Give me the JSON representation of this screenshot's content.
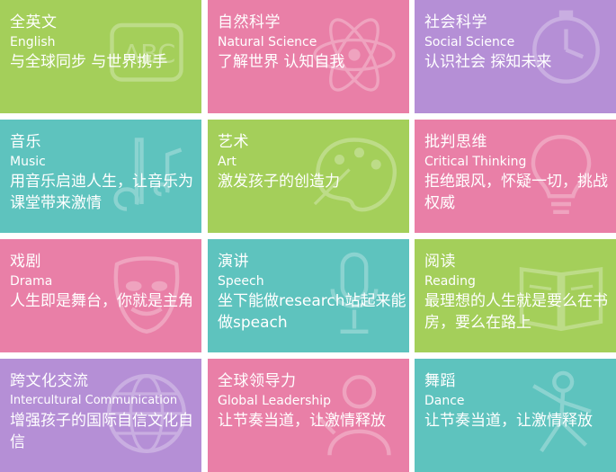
{
  "tiles": [
    {
      "key": "english",
      "cn": "全英文",
      "en": "English",
      "desc": "与全球同步 与世界携手",
      "color": "#a4cf5a",
      "icon": "abc-icon"
    },
    {
      "key": "natural-science",
      "cn": "自然科学",
      "en": "Natural Science",
      "desc": "了解世界  认知自我",
      "color": "#e97fa7",
      "icon": "atom-icon"
    },
    {
      "key": "social-science",
      "cn": "社会科学",
      "en": "Social Science",
      "desc": "认识社会 探知未来",
      "color": "#b58fd6",
      "icon": "clock-icon"
    },
    {
      "key": "music",
      "cn": "音乐",
      "en": "Music",
      "desc": "用音乐启迪人生，让音乐为课堂带来激情",
      "color": "#5ec3be",
      "icon": "music-note-icon"
    },
    {
      "key": "art",
      "cn": "艺术",
      "en": "Art",
      "desc": "激发孩子的创造力",
      "color": "#a4cf5a",
      "icon": "palette-icon"
    },
    {
      "key": "critical-thinking",
      "cn": "批判思维",
      "en": "Critical Thinking",
      "desc": "拒绝跟风，怀疑一切，挑战权威",
      "color": "#e97fa7",
      "icon": "lightbulb-icon"
    },
    {
      "key": "drama",
      "cn": "戏剧",
      "en": "Drama",
      "desc": "人生即是舞台，你就是主角",
      "color": "#e97fa7",
      "icon": "mask-icon"
    },
    {
      "key": "speech",
      "cn": "演讲",
      "en": "Speech",
      "desc": "坐下能做research站起来能做speach",
      "color": "#5ec3be",
      "icon": "microphone-icon"
    },
    {
      "key": "reading",
      "cn": "阅读",
      "en": "Reading",
      "desc": "最理想的人生就是要么在书房，要么在路上",
      "color": "#a4cf5a",
      "icon": "book-icon"
    },
    {
      "key": "intercultural",
      "cn": "跨文化交流",
      "en": "Intercultural Communication",
      "desc": "增强孩子的国际自信文化自信",
      "color": "#b58fd6",
      "icon": "globe-icon"
    },
    {
      "key": "leadership",
      "cn": "全球领导力",
      "en": "Global Leadership",
      "desc": "让节奏当道，让激情释放",
      "color": "#e97fa7",
      "icon": "leader-icon"
    },
    {
      "key": "dance",
      "cn": "舞蹈",
      "en": "Dance",
      "desc": "让节奏当道，让激情释放",
      "color": "#5ec3be",
      "icon": "dancer-icon"
    }
  ]
}
